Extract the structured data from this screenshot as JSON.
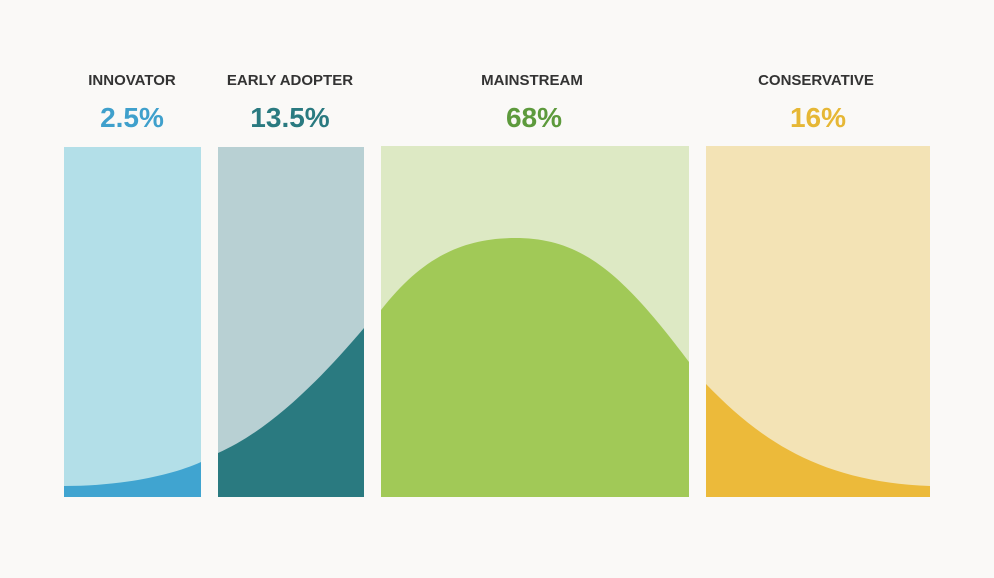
{
  "segments": [
    {
      "label": "INNOVATOR",
      "value": "2.5%"
    },
    {
      "label": "EARLY ADOPTER",
      "value": "13.5%"
    },
    {
      "label": "MAINSTREAM",
      "value": "68%"
    },
    {
      "label": "CONSERVATIVE",
      "value": "16%"
    }
  ]
}
